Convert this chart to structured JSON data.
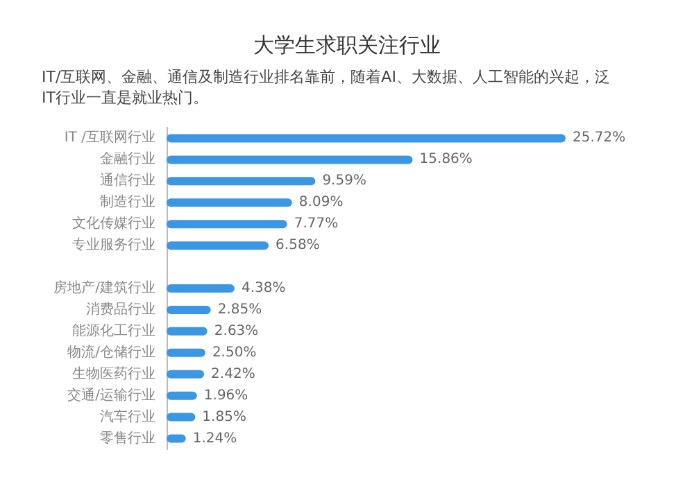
{
  "chart_data": {
    "type": "bar",
    "orientation": "horizontal",
    "title": "大学生求职关注行业",
    "subtitle": "IT/互联网、金融、通信及制造行业排名靠前，随着AI、大数据、人工智能的兴起，泛IT行业一直是就业热门。",
    "categories": [
      "IT /互联网行业",
      "金融行业",
      "通信行业",
      "制造行业",
      "文化传媒行业",
      "专业服务行业",
      null,
      "房地产/建筑行业",
      "消费品行业",
      "能源化工行业",
      "物流/仓储行业",
      "生物医药行业",
      "交通/运输行业",
      "汽车行业",
      "零售行业"
    ],
    "values": [
      25.72,
      15.86,
      9.59,
      8.09,
      7.77,
      6.58,
      null,
      4.38,
      2.85,
      2.63,
      2.5,
      2.42,
      1.96,
      1.85,
      1.24
    ],
    "value_labels": [
      "25.72%",
      "15.86%",
      "9.59%",
      "8.09%",
      "7.77%",
      "6.58%",
      null,
      "4.38%",
      "2.85%",
      "2.63%",
      "2.50%",
      "2.42%",
      "1.96%",
      "1.85%",
      "1.24%"
    ],
    "color": "#3b97e3"
  }
}
